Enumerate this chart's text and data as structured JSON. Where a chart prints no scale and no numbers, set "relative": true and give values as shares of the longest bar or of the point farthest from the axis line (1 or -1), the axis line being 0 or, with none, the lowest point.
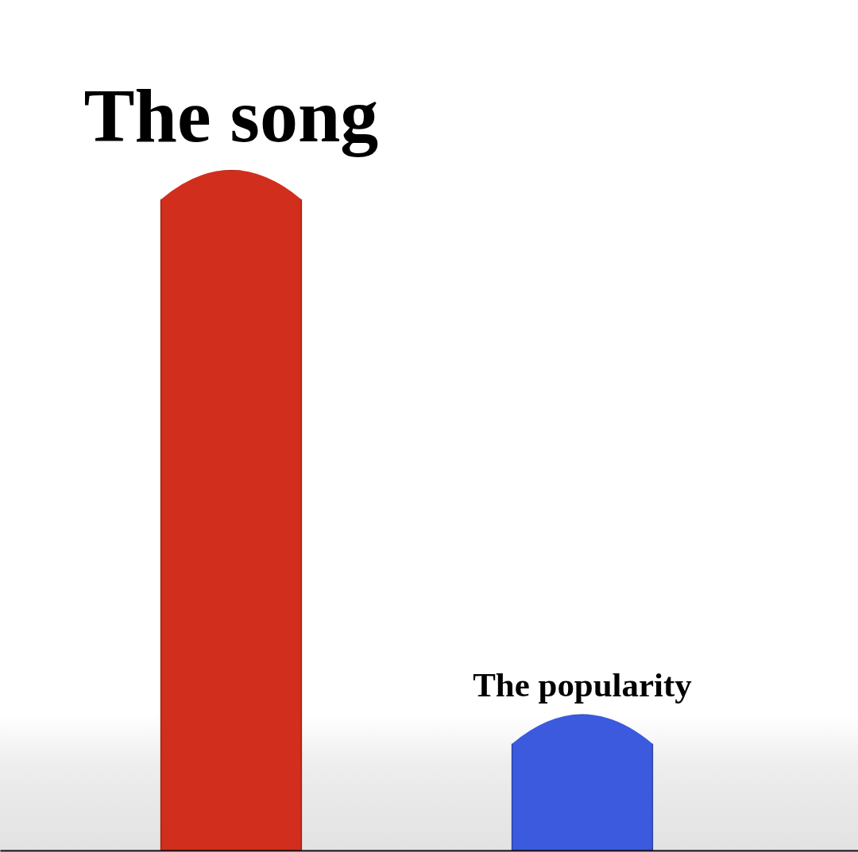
{
  "chart_data": {
    "type": "bar",
    "categories": [
      null,
      null
    ],
    "values": [
      1,
      0.2
    ],
    "colors": [
      "#d12e1e",
      "#3b5ade"
    ],
    "annotations": [
      "The song",
      "The popularity"
    ],
    "relative": true
  }
}
